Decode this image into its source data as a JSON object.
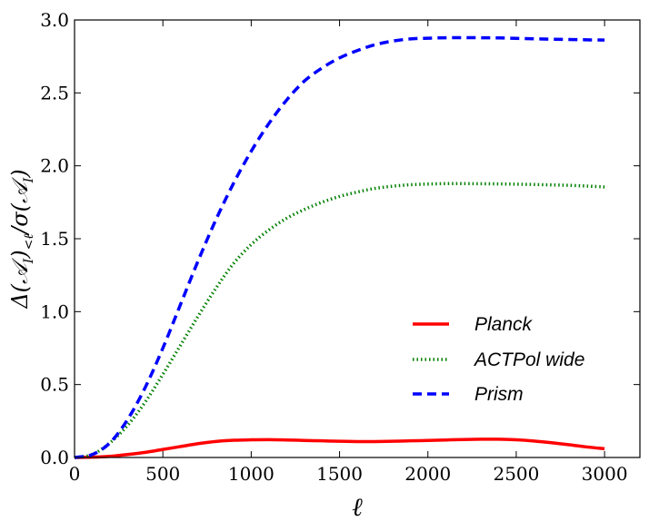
{
  "chart_data": {
    "type": "line",
    "title": "",
    "xlabel": "ℓ",
    "ylabel": "Δ(𝒜_I)_{<ℓ}/σ(𝒜_I)",
    "ylabel_parts": {
      "pre": "Δ(",
      "calA1": "𝒜",
      "sub1": "I",
      "mid": ")",
      "subLess": "<ℓ",
      "slash": "/σ(",
      "calA2": "𝒜",
      "sub2": "I",
      "close": ")"
    },
    "xlim": [
      0,
      3200
    ],
    "ylim": [
      0,
      3.0
    ],
    "xticks": [
      0,
      500,
      1000,
      1500,
      2000,
      2500,
      3000
    ],
    "xtick_labels": [
      "0",
      "500",
      "1000",
      "1500",
      "2000",
      "2500",
      "3000"
    ],
    "yticks": [
      0,
      0.5,
      1.0,
      1.5,
      2.0,
      2.5,
      3.0
    ],
    "ytick_labels": [
      "0.0",
      "0.5",
      "1.0",
      "1.5",
      "2.0",
      "2.5",
      "3.0"
    ],
    "legend_position": "center-right",
    "series": [
      {
        "name": "Planck",
        "color": "#ff0000",
        "style": "solid",
        "x": [
          0,
          100,
          200,
          300,
          400,
          500,
          600,
          700,
          800,
          900,
          1000,
          1100,
          1200,
          1300,
          1400,
          1500,
          1600,
          1700,
          1800,
          1900,
          2000,
          2100,
          2200,
          2300,
          2400,
          2500,
          2600,
          2700,
          2800,
          2900,
          3000
        ],
        "y": [
          0.0,
          0.002,
          0.008,
          0.02,
          0.035,
          0.055,
          0.075,
          0.095,
          0.11,
          0.118,
          0.121,
          0.122,
          0.12,
          0.117,
          0.114,
          0.111,
          0.109,
          0.109,
          0.111,
          0.114,
          0.117,
          0.12,
          0.123,
          0.125,
          0.125,
          0.121,
          0.113,
          0.101,
          0.087,
          0.072,
          0.06
        ]
      },
      {
        "name": "ACTPol wide",
        "color": "#008000",
        "style": "dotted",
        "x": [
          0,
          100,
          200,
          300,
          400,
          500,
          600,
          700,
          800,
          900,
          1000,
          1100,
          1200,
          1300,
          1400,
          1500,
          1600,
          1700,
          1800,
          1900,
          2000,
          2100,
          2200,
          2300,
          2400,
          2500,
          2600,
          2700,
          2800,
          2900,
          3000
        ],
        "y": [
          0.0,
          0.02,
          0.1,
          0.22,
          0.38,
          0.57,
          0.77,
          0.97,
          1.16,
          1.33,
          1.46,
          1.56,
          1.64,
          1.7,
          1.75,
          1.79,
          1.82,
          1.845,
          1.86,
          1.87,
          1.875,
          1.878,
          1.878,
          1.877,
          1.876,
          1.874,
          1.872,
          1.869,
          1.866,
          1.861,
          1.855
        ]
      },
      {
        "name": "Prism",
        "color": "#0000ff",
        "style": "dashed",
        "x": [
          0,
          100,
          200,
          300,
          400,
          500,
          600,
          700,
          800,
          900,
          1000,
          1100,
          1200,
          1300,
          1400,
          1500,
          1600,
          1700,
          1800,
          1900,
          2000,
          2100,
          2200,
          2300,
          2400,
          2500,
          2600,
          2700,
          2800,
          2900,
          3000
        ],
        "y": [
          0.0,
          0.02,
          0.1,
          0.26,
          0.48,
          0.75,
          1.05,
          1.35,
          1.63,
          1.88,
          2.1,
          2.29,
          2.45,
          2.58,
          2.67,
          2.74,
          2.79,
          2.83,
          2.855,
          2.87,
          2.875,
          2.878,
          2.879,
          2.878,
          2.877,
          2.874,
          2.871,
          2.868,
          2.866,
          2.864,
          2.862
        ]
      }
    ]
  }
}
